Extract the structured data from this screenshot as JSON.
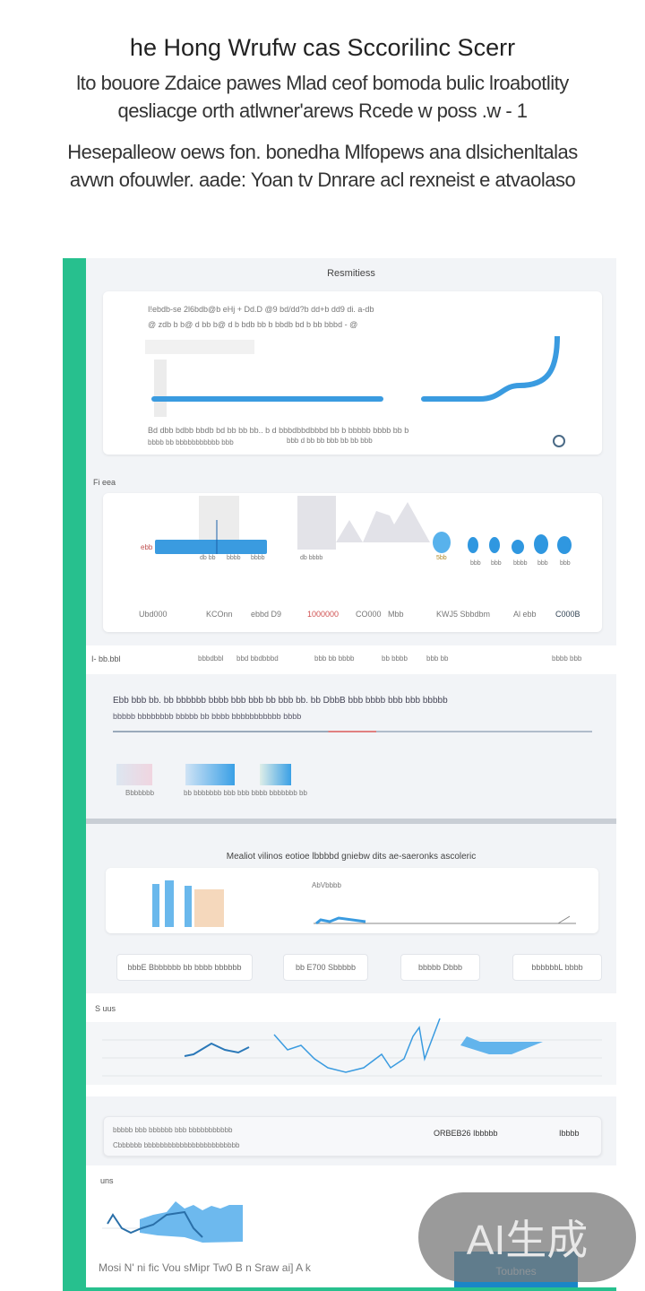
{
  "header": {
    "title": "he Hong Wrufw cas Sccorilinc Scerr",
    "subtitle_lines": [
      "lto bouore Zdaice pawes Mlad ceof bomoda bulic lroabotlity",
      "qesliacge orth atlwner'arews Rcede w poss  .w - 1"
    ],
    "description_lines": [
      "Hesepalleow oews fon. bonedha Mlfopews ana dlsichenltalas",
      "avwn ofouwler. aade: Yoan tv Dnrare acl rexneist e atvaolaso"
    ]
  },
  "colors": {
    "accent_green": "#27c08e",
    "chart_blue": "#3a9be0",
    "button_blue": "#1a86c7"
  },
  "section1": {
    "title": "Resmitiess",
    "line1": "I!ebdb-se 2l6bdb@b eHj  +  Dd.D @9 bd/dd?b  dd+b dd9 di.   a-db",
    "line2": "@ zdb b b@ d bb  b@ d b bdb  bb b bbdb bd b bb bbbd -  @",
    "footer1": "Bd dbb bdbb bbdb bd bb bb bb.. b d bbbdbbdbbbd bb b bbbbb bbbb bb b",
    "footer2": "bbbb bb  bbbbbbbbbbb bbb",
    "footer3": "bbb d bb bb bbb bb bb bbb",
    "toggle_label": "Q"
  },
  "section2": {
    "label": "Fi eea",
    "bar_label": "ebb",
    "bar_ticks": [
      "db bb",
      "bbbb",
      "bbbb"
    ],
    "area_tick": "db bbbb",
    "dots_label": "5bb",
    "dot_ticks": [
      "bbb",
      "bbb",
      "bbbb",
      "bbb",
      "bbb"
    ],
    "metrics": [
      "Ubd000",
      "KCOnn",
      "ebbd D9",
      "1000000",
      "CO000",
      "Mbb",
      "KWJ5 Sbbdbm",
      "Al ebb",
      "C000B"
    ]
  },
  "section3": {
    "label": "I- bb.bbl",
    "tabs": [
      "bbbdbbl",
      "bbd bbdbbbd",
      "bbb bb bbbb",
      "bb  bbbb",
      "bbb bb",
      "bbbb bbb"
    ],
    "text1": "Ebb bbb bb. bb bbbbbb bbbb bbb bbb bb bbb bb. bb DbbB bbb bbbb bbb bbb bbbbb",
    "text2": "bbbbb bbbbbbbb bbbbb bb bbbb bbbbbbbbbbb bbbb",
    "thumb_caption1": "Bbbbbbb",
    "thumb_caption2": "bb bbbbbbb bbb bbb bbbb bbbbbbb bb"
  },
  "section4": {
    "title": "Mealiot vilinos eotioe  lbbbbd gniebw dits ae-saeronks ascoleric",
    "chart_label": "AbVbbbb",
    "buttons": [
      "bbbE Bbbbbbb bb bbbb bbbbbb",
      "bb E700 Sbbbbb",
      "bbbbb Dbbb",
      "bbbbbbL bbbb"
    ]
  },
  "section5": {
    "label": "S uus"
  },
  "section6": {
    "line1": "bbbbb  bbb bbbbbb bbb bbbbbbbbbbb",
    "line2": "Cbbbbbb bbbbbbbbbbbbbbbbbbbbbbbb",
    "right_text": "ORBEB26 Ibbbbb",
    "right_badge": "Ibbbb"
  },
  "section7": {
    "label": "uns"
  },
  "footer": {
    "text": "Mosi N' ni fic Vou sMipr Tw0 B n Sraw ai] A k",
    "cta": "Toubnes"
  },
  "watermark": "AI生成"
}
